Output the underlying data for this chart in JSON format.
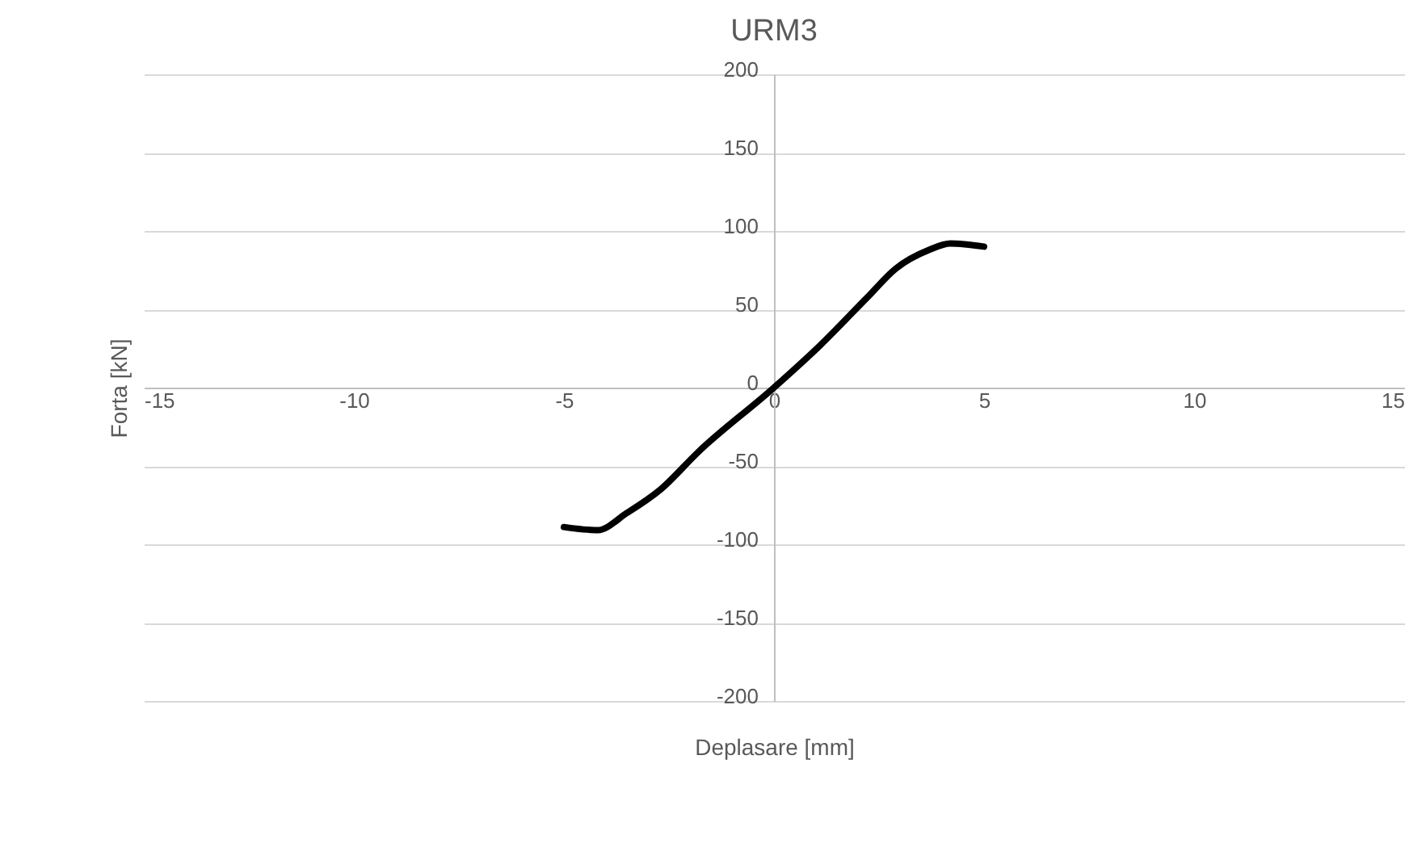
{
  "chart_data": {
    "type": "line",
    "title": "URM3",
    "xlabel": "Deplasare [mm]",
    "ylabel": "Forta [kN]",
    "xlim": [
      -15,
      15
    ],
    "xticks": [
      -15,
      -10,
      -5,
      0,
      5,
      10,
      15
    ],
    "ylim": [
      -200,
      200
    ],
    "yticks": [
      -200,
      -150,
      -100,
      -50,
      0,
      50,
      100,
      150,
      200
    ],
    "grid": "y",
    "series": [
      {
        "color": "#000000",
        "x": [
          -5,
          -4.2,
          -3.5,
          -2.7,
          -1.8,
          0,
          1.1,
          2.2,
          2.9,
          3.7,
          4.2,
          5
        ],
        "values": [
          -89,
          -91,
          -80,
          -65,
          -41,
          0,
          27,
          57,
          76,
          88,
          92,
          90
        ]
      }
    ]
  }
}
